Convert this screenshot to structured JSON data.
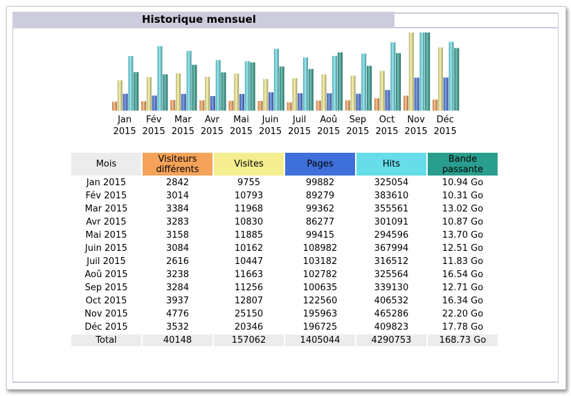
{
  "title": "Historique mensuel",
  "colors": {
    "visitors": "#f5a35a",
    "visits": "#f4ee90",
    "pages": "#3f6fd8",
    "hits": "#66dde8",
    "bandwidth": "#2a9e8e",
    "mois_header": "#ececec"
  },
  "table": {
    "headers": {
      "mois": "Mois",
      "visiteurs": "Visiteurs\ndifférents",
      "visites": "Visites",
      "pages": "Pages",
      "hits": "Hits",
      "bande": "Bande\npassante"
    },
    "rows": [
      {
        "mois": "Jan 2015",
        "visiteurs": "2842",
        "visites": "9755",
        "pages": "99882",
        "hits": "325054",
        "bande": "10.94 Go"
      },
      {
        "mois": "Fév 2015",
        "visiteurs": "3014",
        "visites": "10793",
        "pages": "89279",
        "hits": "383610",
        "bande": "10.31 Go"
      },
      {
        "mois": "Mar 2015",
        "visiteurs": "3384",
        "visites": "11968",
        "pages": "99362",
        "hits": "355561",
        "bande": "13.02 Go"
      },
      {
        "mois": "Avr 2015",
        "visiteurs": "3283",
        "visites": "10830",
        "pages": "86277",
        "hits": "301091",
        "bande": "10.87 Go"
      },
      {
        "mois": "Mai 2015",
        "visiteurs": "3158",
        "visites": "11885",
        "pages": "99415",
        "hits": "294596",
        "bande": "13.70 Go"
      },
      {
        "mois": "Juin 2015",
        "visiteurs": "3084",
        "visites": "10162",
        "pages": "108982",
        "hits": "367994",
        "bande": "12.51 Go"
      },
      {
        "mois": "Juil 2015",
        "visiteurs": "2616",
        "visites": "10447",
        "pages": "103182",
        "hits": "316512",
        "bande": "11.83 Go"
      },
      {
        "mois": "Aoû 2015",
        "visiteurs": "3238",
        "visites": "11663",
        "pages": "102782",
        "hits": "325564",
        "bande": "16.54 Go"
      },
      {
        "mois": "Sep 2015",
        "visiteurs": "3284",
        "visites": "11256",
        "pages": "100635",
        "hits": "339130",
        "bande": "12.71 Go"
      },
      {
        "mois": "Oct 2015",
        "visiteurs": "3937",
        "visites": "12807",
        "pages": "122560",
        "hits": "406532",
        "bande": "16.34 Go"
      },
      {
        "mois": "Nov 2015",
        "visiteurs": "4776",
        "visites": "25150",
        "pages": "195963",
        "hits": "465286",
        "bande": "22.20 Go"
      },
      {
        "mois": "Déc 2015",
        "visiteurs": "3532",
        "visites": "20346",
        "pages": "196725",
        "hits": "409823",
        "bande": "17.78 Go"
      }
    ],
    "total": {
      "mois": "Total",
      "visiteurs": "40148",
      "visites": "157062",
      "pages": "1405044",
      "hits": "4290753",
      "bande": "168.73 Go"
    }
  },
  "chart_data": {
    "type": "bar",
    "categories": [
      "Jan",
      "Fév",
      "Mar",
      "Avr",
      "Mai",
      "Juin",
      "Juil",
      "Aoû",
      "Sep",
      "Oct",
      "Nov",
      "Déc"
    ],
    "category_years": [
      "2015",
      "2015",
      "2015",
      "2015",
      "2015",
      "2015",
      "2015",
      "2015",
      "2015",
      "2015",
      "2015",
      "2015"
    ],
    "series": [
      {
        "key": "visitors",
        "values": [
          2842,
          3014,
          3384,
          3283,
          3158,
          3084,
          2616,
          3238,
          3284,
          3937,
          4776,
          3532
        ]
      },
      {
        "key": "visits",
        "values": [
          9755,
          10793,
          11968,
          10830,
          11885,
          10162,
          10447,
          11663,
          11256,
          12807,
          25150,
          20346
        ]
      },
      {
        "key": "pages",
        "values": [
          99882,
          89279,
          99362,
          86277,
          99415,
          108982,
          103182,
          102782,
          100635,
          122560,
          195963,
          196725
        ]
      },
      {
        "key": "hits",
        "values": [
          325054,
          383610,
          355561,
          301091,
          294596,
          367994,
          316512,
          325564,
          339130,
          406532,
          465286,
          409823
        ]
      },
      {
        "key": "bandwidth",
        "values": [
          10.94,
          10.31,
          13.02,
          10.87,
          13.7,
          12.51,
          11.83,
          16.54,
          12.71,
          16.34,
          22.2,
          17.78
        ]
      }
    ],
    "scale_groups": [
      [
        "visitors",
        "visits"
      ],
      [
        "pages",
        "hits"
      ],
      [
        "bandwidth"
      ]
    ],
    "legend": "none"
  }
}
